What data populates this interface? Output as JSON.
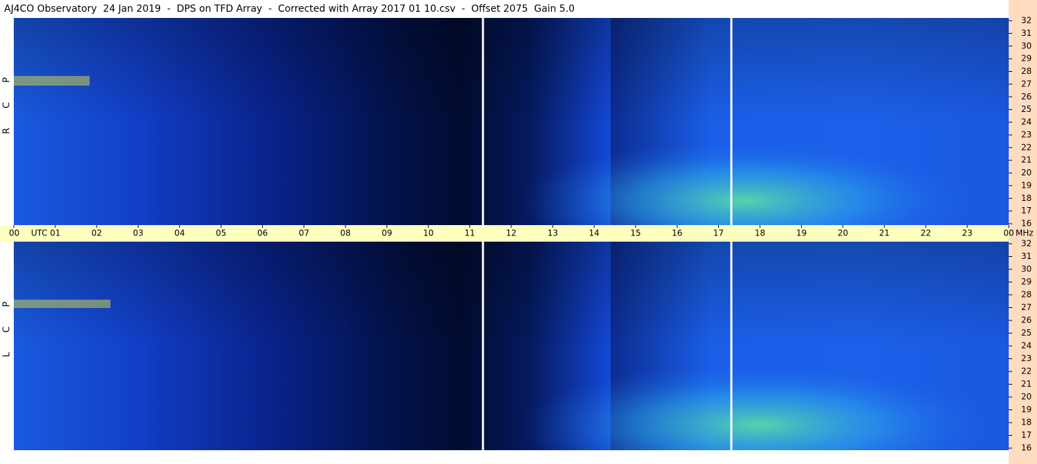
{
  "header": {
    "title": "AJ4CO Observatory  24 Jan 2019  -  DPS on TFD Array  -  Corrected with Array 2017 01 10.csv  -  Offset 2075  Gain 5.0"
  },
  "chart_data": [
    {
      "type": "heatmap",
      "label": "R C P",
      "x_unit": "UTC",
      "y_unit": "MHz",
      "xlim": [
        0,
        24
      ],
      "xticks": [
        {
          "value": 0,
          "label": "00"
        },
        {
          "value": 1,
          "label": "01"
        },
        {
          "value": 2,
          "label": "02"
        },
        {
          "value": 3,
          "label": "03"
        },
        {
          "value": 4,
          "label": "04"
        },
        {
          "value": 5,
          "label": "05"
        },
        {
          "value": 6,
          "label": "06"
        },
        {
          "value": 7,
          "label": "07"
        },
        {
          "value": 8,
          "label": "08"
        },
        {
          "value": 9,
          "label": "09"
        },
        10,
        11,
        12,
        13,
        14,
        15,
        16,
        17,
        18,
        19,
        20,
        21,
        22,
        23,
        {
          "value": 24,
          "label": "00"
        }
      ],
      "ylim": [
        16,
        32
      ],
      "yticks": [
        16,
        17,
        18,
        19,
        20,
        21,
        22,
        23,
        24,
        25,
        26,
        27,
        28,
        29,
        30,
        31,
        32
      ]
    },
    {
      "type": "heatmap",
      "label": "L C P",
      "ylim": [
        16,
        32
      ],
      "yticks": [
        16,
        17,
        18,
        19,
        20,
        21,
        22,
        23,
        24,
        25,
        26,
        27,
        28,
        29,
        30,
        31,
        32
      ]
    }
  ]
}
